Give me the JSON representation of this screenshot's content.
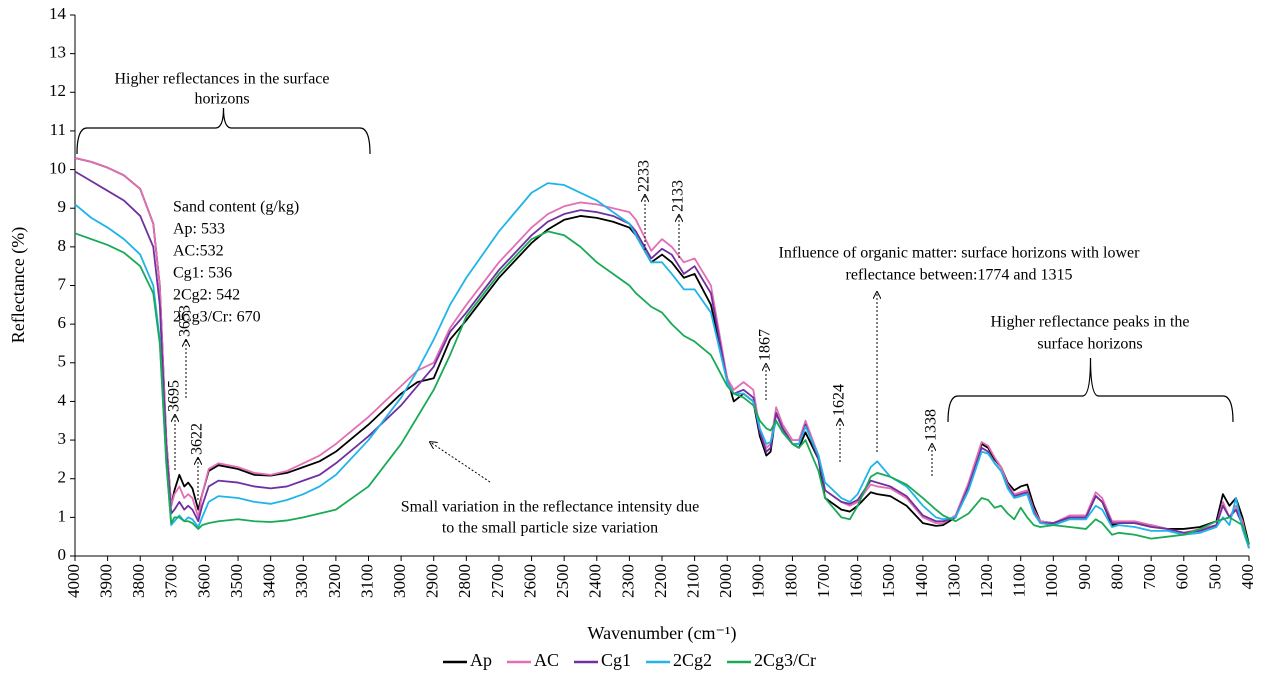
{
  "chart_data": {
    "type": "line",
    "x_label": "Wavenumber (cm⁻¹)",
    "y_label": "Reflectance (%)",
    "xlim": [
      4000,
      400
    ],
    "ylim": [
      0,
      14
    ],
    "xticks": [
      4000,
      3900,
      3800,
      3700,
      3600,
      3500,
      3400,
      3300,
      3200,
      3100,
      3000,
      2900,
      2800,
      2700,
      2600,
      2500,
      2400,
      2300,
      2200,
      2100,
      2000,
      1900,
      1800,
      1700,
      1600,
      1500,
      1400,
      1300,
      1200,
      1100,
      1000,
      900,
      800,
      700,
      600,
      500,
      400
    ],
    "yticks": [
      0,
      1,
      2,
      3,
      4,
      5,
      6,
      7,
      8,
      9,
      10,
      11,
      12,
      13,
      14
    ],
    "grid": false,
    "legend": "bottom",
    "x": [
      4000,
      3950,
      3900,
      3850,
      3800,
      3760,
      3740,
      3720,
      3705,
      3695,
      3680,
      3665,
      3653,
      3640,
      3622,
      3610,
      3590,
      3560,
      3500,
      3450,
      3400,
      3350,
      3300,
      3250,
      3200,
      3100,
      3000,
      2950,
      2900,
      2850,
      2800,
      2700,
      2600,
      2550,
      2500,
      2450,
      2400,
      2350,
      2300,
      2280,
      2233,
      2200,
      2170,
      2133,
      2100,
      2050,
      2000,
      1980,
      1950,
      1920,
      1900,
      1880,
      1867,
      1850,
      1830,
      1800,
      1780,
      1760,
      1720,
      1700,
      1650,
      1624,
      1600,
      1560,
      1540,
      1500,
      1450,
      1400,
      1360,
      1338,
      1300,
      1260,
      1220,
      1200,
      1180,
      1160,
      1140,
      1120,
      1100,
      1080,
      1060,
      1040,
      1000,
      950,
      900,
      870,
      850,
      820,
      800,
      750,
      700,
      650,
      600,
      550,
      500,
      480,
      460,
      440,
      420,
      400
    ],
    "series": [
      {
        "name": "Ap",
        "color": "#000000",
        "values": [
          10.3,
          10.2,
          10.05,
          9.85,
          9.5,
          8.6,
          7.0,
          3.0,
          1.3,
          1.7,
          2.1,
          1.8,
          1.9,
          1.75,
          1.2,
          1.6,
          2.2,
          2.35,
          2.25,
          2.1,
          2.08,
          2.15,
          2.3,
          2.45,
          2.7,
          3.4,
          4.2,
          4.5,
          4.6,
          5.6,
          6.1,
          7.2,
          8.1,
          8.45,
          8.7,
          8.8,
          8.75,
          8.65,
          8.5,
          8.3,
          7.6,
          7.8,
          7.6,
          7.2,
          7.3,
          6.5,
          4.6,
          4.0,
          4.2,
          4.0,
          3.1,
          2.6,
          2.7,
          3.7,
          3.3,
          2.9,
          2.8,
          3.2,
          2.5,
          1.5,
          1.2,
          1.15,
          1.3,
          1.65,
          1.6,
          1.55,
          1.3,
          0.85,
          0.78,
          0.8,
          1.0,
          1.8,
          2.9,
          2.8,
          2.5,
          2.3,
          1.9,
          1.7,
          1.8,
          1.85,
          1.3,
          0.9,
          0.85,
          1.0,
          1.0,
          1.55,
          1.4,
          0.8,
          0.85,
          0.85,
          0.8,
          0.7,
          0.7,
          0.75,
          0.9,
          1.6,
          1.3,
          1.5,
          1.0,
          0.3
        ]
      },
      {
        "name": "AC",
        "color": "#e36eb4",
        "values": [
          10.3,
          10.2,
          10.05,
          9.85,
          9.5,
          8.6,
          7.0,
          3.0,
          1.3,
          1.6,
          1.8,
          1.5,
          1.6,
          1.5,
          1.0,
          1.6,
          2.25,
          2.4,
          2.3,
          2.15,
          2.1,
          2.2,
          2.4,
          2.6,
          2.9,
          3.6,
          4.4,
          4.8,
          5.0,
          5.9,
          6.5,
          7.6,
          8.5,
          8.85,
          9.05,
          9.15,
          9.1,
          9.0,
          8.9,
          8.7,
          7.9,
          8.2,
          8.0,
          7.6,
          7.7,
          7.0,
          4.6,
          4.3,
          4.5,
          4.3,
          3.3,
          2.8,
          2.9,
          3.85,
          3.4,
          3.0,
          3.0,
          3.5,
          2.6,
          1.7,
          1.4,
          1.3,
          1.4,
          1.85,
          1.8,
          1.75,
          1.5,
          1.0,
          0.85,
          0.85,
          1.05,
          1.9,
          2.95,
          2.85,
          2.55,
          2.3,
          1.85,
          1.6,
          1.65,
          1.7,
          1.2,
          0.9,
          0.85,
          1.05,
          1.05,
          1.65,
          1.5,
          0.9,
          0.9,
          0.9,
          0.8,
          0.7,
          0.6,
          0.7,
          0.8,
          1.4,
          1.0,
          1.3,
          0.9,
          0.2
        ]
      },
      {
        "name": "Cg1",
        "color": "#7030a0",
        "values": [
          9.95,
          9.7,
          9.45,
          9.2,
          8.8,
          8.0,
          6.5,
          2.8,
          1.1,
          1.2,
          1.4,
          1.2,
          1.3,
          1.2,
          0.9,
          1.3,
          1.8,
          1.95,
          1.9,
          1.8,
          1.75,
          1.8,
          1.95,
          2.1,
          2.4,
          3.1,
          3.9,
          4.4,
          4.9,
          5.8,
          6.3,
          7.4,
          8.3,
          8.65,
          8.85,
          8.95,
          8.9,
          8.8,
          8.6,
          8.4,
          7.7,
          7.95,
          7.8,
          7.3,
          7.5,
          6.8,
          4.5,
          4.2,
          4.3,
          4.1,
          3.2,
          2.7,
          2.8,
          3.7,
          3.3,
          2.9,
          2.9,
          3.4,
          2.5,
          1.7,
          1.4,
          1.35,
          1.45,
          1.95,
          1.9,
          1.8,
          1.55,
          1.05,
          0.9,
          0.9,
          1.0,
          1.8,
          2.8,
          2.7,
          2.4,
          2.2,
          1.8,
          1.55,
          1.6,
          1.65,
          1.15,
          0.85,
          0.85,
          1.0,
          1.0,
          1.55,
          1.4,
          0.85,
          0.85,
          0.85,
          0.75,
          0.7,
          0.6,
          0.65,
          0.8,
          1.3,
          1.0,
          1.2,
          0.8,
          0.2
        ]
      },
      {
        "name": "2Cg2",
        "color": "#1fb4ea",
        "values": [
          9.1,
          8.75,
          8.5,
          8.2,
          7.8,
          7.0,
          5.6,
          2.4,
          0.8,
          0.9,
          1.05,
          0.9,
          1.0,
          0.95,
          0.75,
          1.0,
          1.4,
          1.55,
          1.5,
          1.4,
          1.35,
          1.45,
          1.6,
          1.8,
          2.1,
          3.0,
          4.1,
          4.8,
          5.6,
          6.5,
          7.2,
          8.4,
          9.4,
          9.65,
          9.6,
          9.4,
          9.2,
          8.9,
          8.6,
          8.3,
          7.6,
          7.6,
          7.3,
          6.9,
          6.9,
          6.3,
          4.5,
          4.2,
          4.2,
          4.0,
          3.3,
          2.9,
          2.95,
          3.5,
          3.2,
          2.9,
          2.9,
          3.35,
          2.6,
          1.9,
          1.5,
          1.4,
          1.6,
          2.3,
          2.45,
          2.05,
          1.8,
          1.3,
          1.0,
          0.95,
          1.0,
          1.7,
          2.7,
          2.65,
          2.4,
          2.2,
          1.75,
          1.5,
          1.55,
          1.6,
          1.1,
          0.85,
          0.8,
          0.95,
          0.95,
          1.3,
          1.2,
          0.75,
          0.8,
          0.75,
          0.65,
          0.65,
          0.55,
          0.6,
          0.75,
          1.0,
          0.8,
          1.5,
          0.7,
          0.2
        ]
      },
      {
        "name": "2Cg3/Cr",
        "color": "#1aaa55",
        "values": [
          8.35,
          8.2,
          8.05,
          7.85,
          7.5,
          6.8,
          5.5,
          2.4,
          0.85,
          1.0,
          1.0,
          0.9,
          0.9,
          0.85,
          0.7,
          0.8,
          0.85,
          0.9,
          0.95,
          0.9,
          0.88,
          0.92,
          1.0,
          1.1,
          1.2,
          1.8,
          2.9,
          3.6,
          4.3,
          5.2,
          6.2,
          7.3,
          8.2,
          8.4,
          8.3,
          8.0,
          7.6,
          7.3,
          7.0,
          6.8,
          6.45,
          6.3,
          6.0,
          5.7,
          5.55,
          5.2,
          4.4,
          4.2,
          4.1,
          3.9,
          3.5,
          3.3,
          3.25,
          3.5,
          3.2,
          2.9,
          2.8,
          3.0,
          2.2,
          1.5,
          1.0,
          0.95,
          1.3,
          2.05,
          2.15,
          2.05,
          1.85,
          1.5,
          1.2,
          1.05,
          0.9,
          1.1,
          1.5,
          1.45,
          1.25,
          1.3,
          1.1,
          0.95,
          1.25,
          1.0,
          0.8,
          0.75,
          0.8,
          0.75,
          0.7,
          0.95,
          0.85,
          0.55,
          0.6,
          0.55,
          0.45,
          0.5,
          0.55,
          0.7,
          0.9,
          0.95,
          1.0,
          0.9,
          0.8,
          0.3
        ]
      }
    ],
    "annotations": [
      {
        "lines": [
          "Higher reflectances in the surface",
          "horizons"
        ]
      },
      {
        "lines": [
          "Sand content (g/kg)",
          "Ap: 533",
          "AC:532",
          "Cg1: 536",
          "2Cg2: 542",
          "2Cg3/Cr: 670"
        ]
      },
      {
        "lines": [
          "3695"
        ]
      },
      {
        "lines": [
          "3653"
        ]
      },
      {
        "lines": [
          "3622"
        ]
      },
      {
        "lines": [
          "2233"
        ]
      },
      {
        "lines": [
          "2133"
        ]
      },
      {
        "lines": [
          "1867"
        ]
      },
      {
        "lines": [
          "1624"
        ]
      },
      {
        "lines": [
          "1338"
        ]
      },
      {
        "lines": [
          "Influence of organic matter: surface horizons with lower",
          "reflectance between:1774 and 1315"
        ]
      },
      {
        "lines": [
          "Higher reflectance peaks in the",
          "surface horizons"
        ]
      },
      {
        "lines": [
          "Small variation in the reflectance intensity due",
          "to the small particle size variation"
        ]
      }
    ]
  }
}
